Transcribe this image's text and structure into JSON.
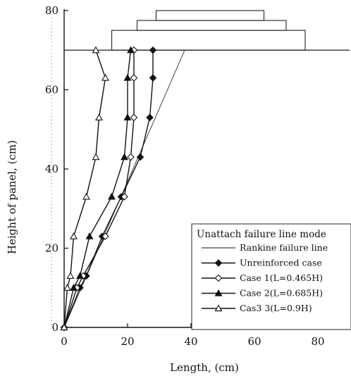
{
  "chart_data": {
    "type": "line",
    "title": "",
    "xlabel": "Length, (cm)",
    "ylabel": "Height of panel, (cm)",
    "xlim": [
      0,
      90
    ],
    "ylim": [
      0,
      80
    ],
    "x_ticks": [
      "0",
      "20",
      "40",
      "60",
      "80"
    ],
    "y_ticks": [
      "0",
      "20",
      "40",
      "60",
      "80"
    ],
    "grid": false,
    "legend": {
      "title": "Unattach failure line mode",
      "placement": "lower-right"
    },
    "panel_top_height": 70,
    "surcharge_blocks": [
      {
        "x0": 15,
        "x1": 76,
        "y0": 70,
        "y1": 75
      },
      {
        "x0": 23,
        "x1": 70,
        "y0": 75,
        "y1": 77.5
      },
      {
        "x0": 29,
        "x1": 63,
        "y0": 77.5,
        "y1": 80
      }
    ],
    "series": [
      {
        "name": "Rankine failure line",
        "marker": "none",
        "points": [
          [
            0,
            0
          ],
          [
            38,
            70
          ]
        ]
      },
      {
        "name": "Unreinforced case",
        "marker": "filled-diamond",
        "points": [
          [
            0,
            0
          ],
          [
            5,
            10
          ],
          [
            7,
            13
          ],
          [
            12,
            23
          ],
          [
            18,
            33
          ],
          [
            24,
            43
          ],
          [
            27,
            53
          ],
          [
            28,
            63
          ],
          [
            28,
            70
          ]
        ]
      },
      {
        "name": "Case 1(L=0.465H)",
        "marker": "open-diamond",
        "points": [
          [
            0,
            0
          ],
          [
            4,
            10
          ],
          [
            6,
            13
          ],
          [
            13,
            23
          ],
          [
            19,
            33
          ],
          [
            21,
            43
          ],
          [
            22,
            53
          ],
          [
            22,
            63
          ],
          [
            22,
            70
          ]
        ]
      },
      {
        "name": "Case 2(L=0.685H)",
        "marker": "filled-triangle",
        "points": [
          [
            0,
            0
          ],
          [
            3,
            10
          ],
          [
            5,
            13
          ],
          [
            8,
            23
          ],
          [
            15,
            33
          ],
          [
            19,
            43
          ],
          [
            20,
            53
          ],
          [
            20,
            63
          ],
          [
            21,
            70
          ]
        ]
      },
      {
        "name": "Cas3 3(L=0.9H)",
        "marker": "open-triangle",
        "points": [
          [
            0,
            0
          ],
          [
            1,
            10
          ],
          [
            2,
            13
          ],
          [
            3,
            23
          ],
          [
            7,
            33
          ],
          [
            10,
            43
          ],
          [
            11,
            53
          ],
          [
            13,
            63
          ],
          [
            10,
            70
          ]
        ]
      }
    ]
  }
}
